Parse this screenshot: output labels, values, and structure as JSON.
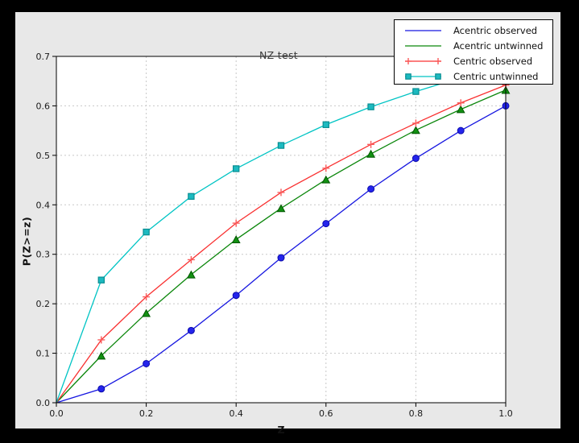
{
  "window": {
    "background": "#000000"
  },
  "figure": {
    "background": "#e8e8e8",
    "plot_background": "#ffffff",
    "grid_color": "#c8c8c8",
    "spine_color": "#000000",
    "tick_text_color": "#1a1a1a"
  },
  "chart_data": {
    "type": "line",
    "title": "NZ test",
    "xlabel": "Z",
    "ylabel": "P(Z>=z)",
    "xlim": [
      0.0,
      1.0
    ],
    "ylim": [
      0.0,
      0.7
    ],
    "xtick_labels": [
      "0.0",
      "0.2",
      "0.4",
      "0.6",
      "0.8",
      "1.0"
    ],
    "xtick_values": [
      0.0,
      0.2,
      0.4,
      0.6,
      0.8,
      1.0
    ],
    "ytick_labels": [
      "0.0",
      "0.1",
      "0.2",
      "0.3",
      "0.4",
      "0.5",
      "0.6",
      "0.7"
    ],
    "ytick_values": [
      0.0,
      0.1,
      0.2,
      0.3,
      0.4,
      0.5,
      0.6,
      0.7
    ],
    "grid": true,
    "legend_position": "upper right",
    "x": [
      0.0,
      0.1,
      0.2,
      0.3,
      0.4,
      0.5,
      0.6,
      0.7,
      0.8,
      0.9,
      1.0
    ],
    "series": [
      {
        "name": "Acentric observed",
        "line_color": "#1616e0",
        "marker": "circle",
        "marker_fill": "#2424ec",
        "marker_edge": "#0b0baa",
        "legend_shows_marker": false,
        "values": [
          0.0,
          0.028,
          0.079,
          0.146,
          0.217,
          0.293,
          0.362,
          0.432,
          0.494,
          0.55,
          0.6
        ]
      },
      {
        "name": "Acentric untwinned",
        "line_color": "#0a860a",
        "marker": "triangle",
        "marker_fill": "#129012",
        "marker_edge": "#015701",
        "legend_shows_marker": false,
        "values": [
          0.0,
          0.095,
          0.181,
          0.259,
          0.33,
          0.393,
          0.451,
          0.503,
          0.551,
          0.593,
          0.632
        ]
      },
      {
        "name": "Centric observed",
        "line_color": "#f93131",
        "marker": "plus",
        "marker_fill": "none",
        "marker_edge": "#fa5a5a",
        "legend_shows_marker": true,
        "values": [
          0.0,
          0.127,
          0.214,
          0.289,
          0.363,
          0.425,
          0.474,
          0.522,
          0.565,
          0.606,
          0.642
        ]
      },
      {
        "name": "Centric untwinned",
        "line_color": "#00c4c4",
        "marker": "square",
        "marker_fill": "#1cbac0",
        "marker_edge": "#0a8e92",
        "legend_shows_marker": true,
        "values": [
          0.0,
          0.248,
          0.345,
          0.417,
          0.473,
          0.52,
          0.562,
          0.598,
          0.629,
          0.657,
          0.683
        ]
      }
    ]
  }
}
